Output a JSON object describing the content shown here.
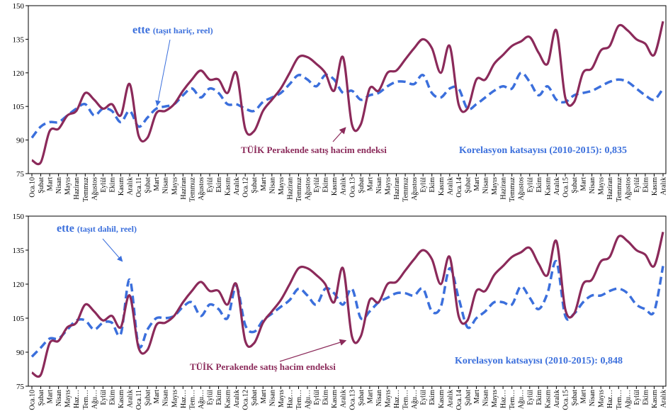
{
  "chart_data": [
    {
      "type": "line",
      "categories": [
        "Oca.10",
        "Şubat",
        "Mart",
        "Nisan",
        "Mayıs",
        "Haziran",
        "Temmuz",
        "Ağustos",
        "Eylül",
        "Ekim",
        "Kasım",
        "Aralık",
        "Oca.11",
        "Şubat",
        "Mart",
        "Nisan",
        "Mayıs",
        "Haziran",
        "Temmuz",
        "Ağustos",
        "Eylül",
        "Ekim",
        "Kasım",
        "Aralık",
        "Oca.12",
        "Şubat",
        "Mart",
        "Nisan",
        "Mayıs",
        "Haziran",
        "Temmuz",
        "Ağustos",
        "Eylül",
        "Ekim",
        "Kasım",
        "Aralık",
        "Oca.13",
        "Şubat",
        "Mart",
        "Nisan",
        "Mayıs",
        "Haziran",
        "Temmuz",
        "Ağustos",
        "Eylül",
        "Ekim",
        "Kasım",
        "Aralık",
        "Oca.14",
        "Şubat",
        "Mart",
        "Nisan",
        "Mayıs",
        "Haziran",
        "Temmuz",
        "Ağustos",
        "Eylül",
        "Ekim",
        "Kasım",
        "Aralık",
        "Oca.15",
        "Şubat",
        "Mart",
        "Nisan",
        "Mayıs",
        "Haziran",
        "Temmuz",
        "Ağustos",
        "Eylül",
        "Ekim",
        "Kasım",
        "Aralık"
      ],
      "series": [
        {
          "name": "TÜİK Perakende satış hacim endeksi",
          "color": "#8b2a5a",
          "dashed": false,
          "values": [
            81,
            80,
            94,
            95,
            101,
            103,
            111,
            108,
            104,
            106,
            101,
            115,
            92,
            91,
            102,
            103,
            106,
            112,
            117,
            121,
            117,
            117,
            111,
            120,
            95,
            94,
            103,
            108,
            113,
            120,
            127,
            127,
            124,
            120,
            112,
            127,
            97,
            97,
            113,
            112,
            120,
            121,
            126,
            131,
            135,
            131,
            120,
            132,
            106,
            104,
            117,
            117,
            124,
            128,
            132,
            134,
            136,
            129,
            124,
            139,
            109,
            107,
            120,
            122,
            130,
            132,
            141,
            139,
            135,
            133,
            128,
            143
          ]
        },
        {
          "name": "ette",
          "note": "(taşıt hariç, reel)",
          "color": "#3b6fdc",
          "dashed": true,
          "values": [
            91,
            96,
            98,
            98,
            101,
            104,
            106,
            101,
            104,
            103,
            98,
            103,
            96,
            100,
            104,
            105,
            106,
            110,
            113,
            109,
            113,
            111,
            106,
            106,
            104,
            103,
            107,
            109,
            111,
            115,
            119,
            117,
            114,
            119,
            117,
            111,
            112,
            108,
            110,
            111,
            114,
            116,
            116,
            115,
            119,
            111,
            109,
            113,
            113,
            104,
            106,
            109,
            112,
            114,
            113,
            120,
            116,
            110,
            114,
            108,
            107,
            110,
            111,
            112,
            114,
            116,
            117,
            116,
            113,
            110,
            108,
            113
          ]
        }
      ],
      "annotation": "Korelasyon katsayısı (2010-2015): 0,835",
      "ylim": [
        75,
        150
      ],
      "yticks": [
        75,
        90,
        105,
        120,
        135,
        150
      ]
    },
    {
      "type": "line",
      "categories": [
        "Oca.10",
        "Şubat",
        "Mart",
        "Nisan",
        "Mayıs",
        "Haz…",
        "Tem…",
        "Ağu…",
        "Eylül",
        "Ekim",
        "Kasım",
        "Aralık",
        "Oca.11",
        "Şubat",
        "Mart",
        "Nisan",
        "Mayıs",
        "Haz…",
        "Tem…",
        "Ağu…",
        "Eylül",
        "Ekim",
        "Kasım",
        "Aralık",
        "Oca.12",
        "Şubat",
        "Mart",
        "Nisan",
        "Mayıs",
        "Haz…",
        "Tem…",
        "Ağu…",
        "Eylül",
        "Ekim",
        "Kasım",
        "Aralık",
        "Oca.13",
        "Şubat",
        "Mart",
        "Nisan",
        "Mayıs",
        "Haz…",
        "Tem…",
        "Ağu…",
        "Eylül",
        "Ekim",
        "Kasım",
        "Aralık",
        "Oca.14",
        "Şubat",
        "Mart",
        "Nisan",
        "Mayıs",
        "Haz…",
        "Tem…",
        "Ağu…",
        "Eylül",
        "Ekim",
        "Kasım",
        "Aralık",
        "Oca.15",
        "Şubat",
        "Mart",
        "Nisan",
        "Mayıs",
        "Haz…",
        "Tem…",
        "Ağu…",
        "Eylül",
        "Ekim",
        "Kasım",
        "Aralık"
      ],
      "series": [
        {
          "name": "TÜİK Perakende satış hacim endeksi",
          "color": "#8b2a5a",
          "dashed": false,
          "values": [
            81,
            80,
            94,
            95,
            101,
            103,
            111,
            108,
            104,
            106,
            101,
            115,
            92,
            91,
            102,
            103,
            106,
            112,
            117,
            121,
            117,
            117,
            111,
            120,
            95,
            94,
            103,
            108,
            113,
            120,
            127,
            127,
            124,
            120,
            112,
            127,
            97,
            97,
            113,
            112,
            120,
            121,
            126,
            131,
            135,
            131,
            120,
            132,
            106,
            104,
            117,
            117,
            124,
            128,
            132,
            134,
            136,
            129,
            124,
            139,
            109,
            107,
            120,
            122,
            130,
            132,
            141,
            139,
            135,
            133,
            128,
            143
          ]
        },
        {
          "name": "ette",
          "note": "(taşıt dahil, reel)",
          "color": "#3b6fdc",
          "dashed": true,
          "values": [
            88,
            92,
            96,
            96,
            100,
            104,
            104,
            100,
            103,
            103,
            98,
            122,
            93,
            100,
            105,
            105,
            106,
            110,
            112,
            106,
            111,
            109,
            105,
            119,
            102,
            99,
            104,
            107,
            110,
            113,
            118,
            115,
            111,
            118,
            116,
            111,
            118,
            105,
            108,
            112,
            114,
            116,
            116,
            115,
            118,
            108,
            110,
            127,
            114,
            101,
            105,
            108,
            112,
            112,
            111,
            119,
            114,
            109,
            116,
            130,
            106,
            107,
            112,
            115,
            115,
            117,
            118,
            116,
            111,
            109,
            108,
            128
          ]
        }
      ],
      "annotation": "Korelasyon katsayısı (2010-2015): 0,848",
      "ylim": [
        75,
        150
      ],
      "yticks": [
        75,
        90,
        105,
        120,
        135,
        150
      ]
    }
  ]
}
